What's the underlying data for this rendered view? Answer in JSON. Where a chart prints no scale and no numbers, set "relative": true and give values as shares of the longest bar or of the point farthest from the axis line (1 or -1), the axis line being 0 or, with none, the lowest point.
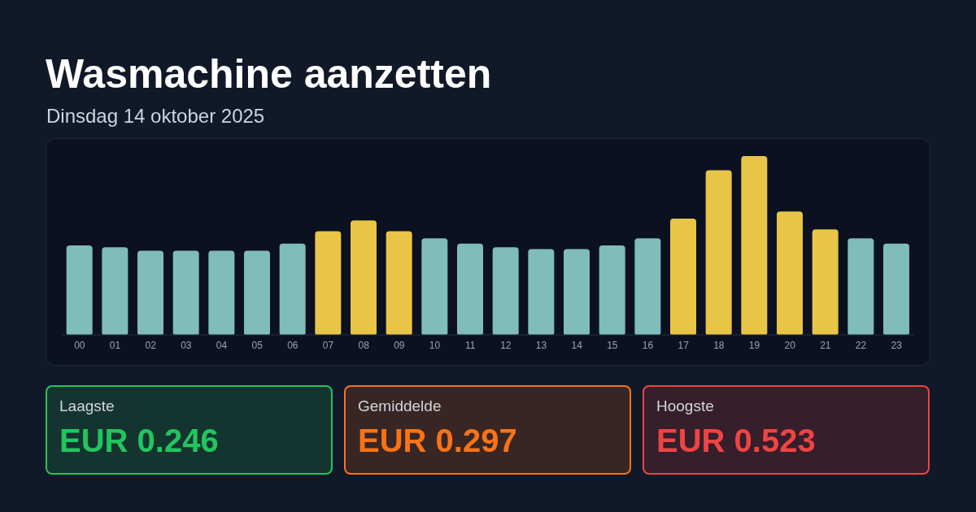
{
  "chart_data": [
    {
      "type": "bar",
      "title": "Wasmachine aanzetten",
      "subtitle": "Dinsdag 14 oktober 2025",
      "relative": true,
      "categories": [
        "00",
        "01",
        "02",
        "03",
        "04",
        "05",
        "06",
        "07",
        "08",
        "09",
        "10",
        "11",
        "12",
        "13",
        "14",
        "15",
        "16",
        "17",
        "18",
        "19",
        "20",
        "21",
        "22",
        "23"
      ],
      "values": [
        0.5,
        0.49,
        0.47,
        0.47,
        0.47,
        0.47,
        0.51,
        0.58,
        0.64,
        0.58,
        0.54,
        0.51,
        0.49,
        0.48,
        0.48,
        0.5,
        0.54,
        0.65,
        0.92,
        1,
        0.69,
        0.59,
        0.54,
        0.51
      ],
      "colors": [
        "#7fbcbb",
        "#7fbcbb",
        "#7fbcbb",
        "#7fbcbb",
        "#7fbcbb",
        "#7fbcbb",
        "#7fbcbb",
        "#e8c547",
        "#e8c547",
        "#e8c547",
        "#7fbcbb",
        "#7fbcbb",
        "#7fbcbb",
        "#7fbcbb",
        "#7fbcbb",
        "#7fbcbb",
        "#7fbcbb",
        "#e8c547",
        "#e8c547",
        "#e8c547",
        "#e8c547",
        "#e8c547",
        "#7fbcbb",
        "#7fbcbb"
      ]
    },
    {
      "type": "other",
      "categories": [
        "Laagste",
        "Gemiddelde",
        "Hoogste"
      ],
      "value_labels": [
        "EUR 0.246",
        "EUR 0.297",
        "EUR 0.523"
      ],
      "colors": [
        "#22c55e",
        "#f97316",
        "#ef4444"
      ]
    }
  ]
}
